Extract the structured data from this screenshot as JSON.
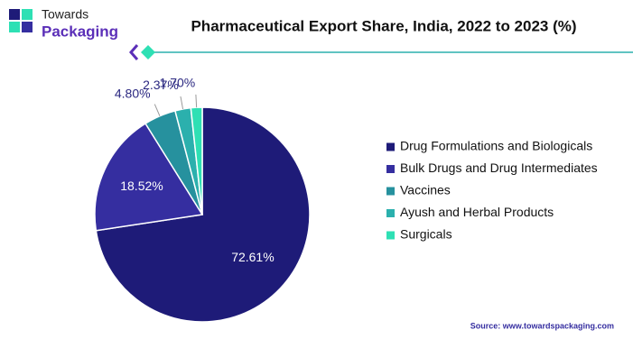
{
  "logo": {
    "line1": "Towards",
    "line2": "Packaging"
  },
  "source": "Source: www.towardspackaging.com",
  "chart_data": {
    "type": "pie",
    "title": "Pharmaceutical Export Share, India, 2022 to 2023 (%)",
    "categories": [
      "Drug Formulations and Biologicals",
      "Bulk Drugs and Drug Intermediates",
      "Vaccines",
      "Ayush and Herbal Products",
      "Surgicals"
    ],
    "values": [
      72.61,
      18.52,
      4.8,
      2.37,
      1.7
    ],
    "value_labels": [
      "72.61%",
      "18.52%",
      "4.80%",
      "2.37%",
      "1.70%"
    ],
    "colors": [
      "#1e1b78",
      "#352ea0",
      "#26919e",
      "#2bb0ad",
      "#2ee0b4"
    ],
    "legend": "right"
  }
}
